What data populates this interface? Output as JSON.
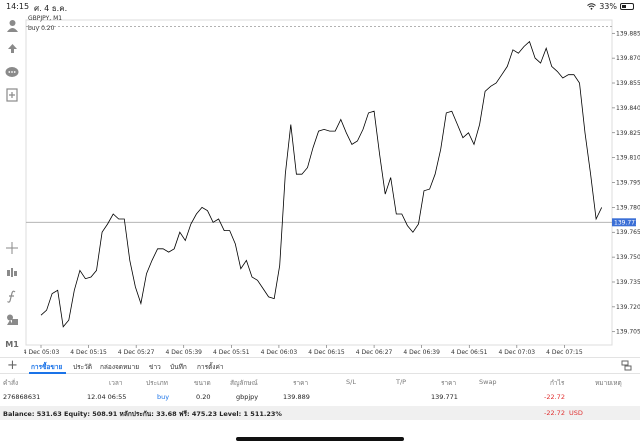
{
  "status_bar": {
    "time": "14:15",
    "date": "ศ. 4 ธ.ค.",
    "battery": "33%",
    "battery_fraction": 0.33
  },
  "chart": {
    "symbol_label": "GBPJPY, M1",
    "order_line_label": "buy 0.20",
    "current_price_label": "139.771",
    "colors": {
      "line": "#000000",
      "grid": "#dcdcdc",
      "current_bg": "#3b6fd6",
      "order_line": "#999999"
    }
  },
  "chart_data": {
    "type": "line",
    "title": "GBPJPY, M1",
    "y_ticks": [
      "139.885",
      "139.870",
      "139.855",
      "139.840",
      "139.825",
      "139.810",
      "139.795",
      "139.780",
      "139.765",
      "139.750",
      "139.735",
      "139.720",
      "139.705"
    ],
    "x_ticks": [
      "4 Dec 05:03",
      "4 Dec 05:15",
      "4 Dec 05:27",
      "4 Dec 05:39",
      "4 Dec 05:51",
      "4 Dec 06:03",
      "4 Dec 06:15",
      "4 Dec 06:27",
      "4 Dec 06:39",
      "4 Dec 06:51",
      "4 Dec 07:03",
      "4 Dec 07:15"
    ],
    "ylim": [
      139.697,
      139.893
    ],
    "x_minutes": [
      0,
      72
    ],
    "order_price": 139.889,
    "current_price": 139.771,
    "series": [
      {
        "x": [
          0,
          0.7,
          1.4,
          2.1,
          2.8,
          3.5,
          4.2,
          4.9,
          5.6,
          6.3,
          7,
          7.7,
          8.4,
          9.1,
          9.8,
          10.5,
          11.2,
          11.9,
          12.6,
          13.3,
          14,
          14.7,
          15.4,
          16.1,
          16.8,
          17.5,
          18.2,
          18.9,
          19.6,
          20.3,
          21,
          21.7,
          22.4,
          23.1,
          23.8,
          24.5,
          25.2,
          25.9,
          26.6,
          27.3,
          28,
          28.7,
          29.4,
          30.1,
          30.8,
          31.5,
          32.2,
          32.9,
          33.6,
          34.3,
          35,
          35.7,
          36.4,
          37.1,
          37.8,
          38.5,
          39.2,
          39.9,
          40.6,
          41.3,
          42,
          42.7,
          43.4,
          44.1,
          44.8,
          45.5,
          46.2,
          46.9,
          47.6,
          48.3,
          49,
          49.7,
          50.4,
          51.1,
          51.8,
          52.5,
          53.2,
          53.9,
          54.6,
          55.3,
          56,
          56.7,
          57.4,
          58.1,
          58.8,
          59.5,
          60.2,
          60.9,
          61.6,
          62.3,
          63,
          63.7,
          64.4,
          65.1,
          65.8,
          66.5,
          67.2,
          67.9,
          68.6,
          69.3,
          70,
          70.7
        ],
        "y": [
          139.715,
          139.718,
          139.728,
          139.73,
          139.708,
          139.712,
          139.73,
          139.742,
          139.737,
          139.738,
          139.742,
          139.765,
          139.77,
          139.776,
          139.773,
          139.773,
          139.748,
          139.732,
          139.722,
          139.74,
          139.748,
          139.755,
          139.755,
          139.753,
          139.755,
          139.765,
          139.76,
          139.77,
          139.776,
          139.78,
          139.778,
          139.771,
          139.773,
          139.766,
          139.766,
          139.758,
          139.743,
          139.748,
          139.738,
          139.736,
          139.731,
          139.726,
          139.725,
          139.745,
          139.8,
          139.83,
          139.8,
          139.8,
          139.804,
          139.816,
          139.826,
          139.827,
          139.826,
          139.826,
          139.833,
          139.825,
          139.818,
          139.82,
          139.827,
          139.837,
          139.838,
          139.812,
          139.788,
          139.798,
          139.776,
          139.776,
          139.769,
          139.765,
          139.77,
          139.79,
          139.791,
          139.8,
          139.815,
          139.837,
          139.838,
          139.83,
          139.822,
          139.825,
          139.818,
          139.83,
          139.85,
          139.853,
          139.855,
          139.86,
          139.865,
          139.875,
          139.873,
          139.877,
          139.88,
          139.87,
          139.867,
          139.876,
          139.865,
          139.862,
          139.858,
          139.86,
          139.86,
          139.855,
          139.825,
          139.8,
          139.773,
          139.78
        ]
      }
    ]
  },
  "tabs": [
    {
      "label": "การซื้อขาย",
      "active": true
    },
    {
      "label": "ประวัติ",
      "active": false
    },
    {
      "label": "กล่องจดหมาย",
      "active": false
    },
    {
      "label": "ข่าว",
      "active": false
    },
    {
      "label": "บันทึก",
      "active": false
    },
    {
      "label": "การตั้งค่า",
      "active": false
    }
  ],
  "table": {
    "headers": {
      "order": "คำสั่ง",
      "time": "เวลา",
      "type": "ประเภท",
      "size": "ขนาด",
      "symbol": "สัญลักษณ์",
      "price_open": "ราคา",
      "sl": "S/L",
      "tp": "T/P",
      "price_current": "ราคา",
      "swap": "Swap",
      "profit": "กำไร",
      "comment": "หมายเหตุ"
    },
    "row": {
      "order": "276868631",
      "time": "12.04 06:55",
      "type": "buy",
      "size": "0.20",
      "symbol": "gbpjpy",
      "price_open": "139.889",
      "price_current": "139.771",
      "profit": "-22.72"
    }
  },
  "balance": {
    "summary": "Balance: 531.63 Equity: 508.91 หลักประกัน: 33.68 ฟรี: 475.23 Level: 1 511.23%",
    "profit": "-22.72",
    "currency": "USD"
  }
}
